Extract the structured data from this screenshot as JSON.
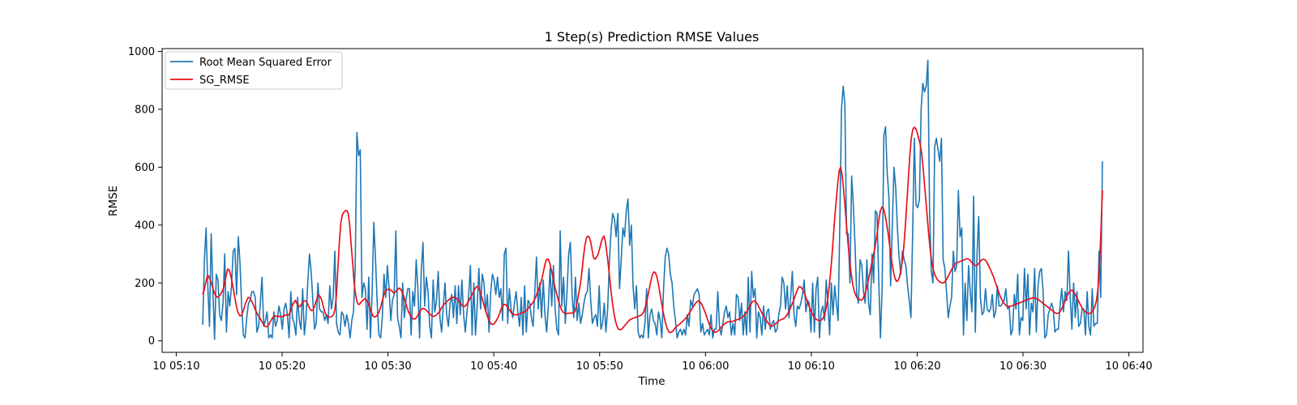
{
  "chart_data": {
    "type": "line",
    "title": "1 Step(s) Prediction RMSE Values",
    "xlabel": "Time",
    "ylabel": "RMSE",
    "xlim": [
      "10 05:08:40",
      "10 06:41:20"
    ],
    "ylim": [
      -40,
      1010
    ],
    "x_ticks": [
      "10 05:10",
      "10 05:20",
      "10 05:30",
      "10 05:40",
      "10 05:50",
      "10 06:00",
      "10 06:10",
      "10 06:20",
      "10 06:30",
      "10 06:40"
    ],
    "y_ticks": [
      0,
      200,
      400,
      600,
      800,
      1000
    ],
    "grid": false,
    "legend_position": "top-left",
    "x_start": "10 05:12:30",
    "x_end": "10 06:37:30",
    "series": [
      {
        "name": "Root Mean Squared Error",
        "color": "#1f77b4",
        "values": [
          55,
          280,
          390,
          190,
          50,
          370,
          180,
          5,
          230,
          210,
          90,
          70,
          130,
          300,
          30,
          170,
          120,
          190,
          310,
          320,
          160,
          360,
          270,
          120,
          20,
          10,
          80,
          130,
          140,
          170,
          170,
          150,
          30,
          50,
          130,
          220,
          50,
          70,
          100,
          10,
          20,
          10,
          100,
          50,
          70,
          120,
          90,
          40,
          110,
          130,
          90,
          10,
          170,
          80,
          60,
          20,
          150,
          70,
          40,
          180,
          20,
          80,
          200,
          300,
          240,
          140,
          40,
          60,
          200,
          110,
          100,
          100,
          70,
          90,
          60,
          190,
          110,
          150,
          310,
          60,
          30,
          20,
          100,
          90,
          50,
          90,
          60,
          10,
          70,
          100,
          250,
          720,
          640,
          660,
          150,
          200,
          180,
          40,
          220,
          10,
          170,
          410,
          280,
          130,
          20,
          10,
          80,
          230,
          150,
          260,
          180,
          70,
          140,
          160,
          380,
          80,
          50,
          10,
          200,
          80,
          140,
          180,
          180,
          20,
          170,
          120,
          280,
          180,
          10,
          240,
          340,
          120,
          220,
          170,
          50,
          10,
          210,
          100,
          140,
          240,
          80,
          30,
          120,
          200,
          90,
          50,
          130,
          160,
          80,
          190,
          60,
          190,
          90,
          210,
          90,
          30,
          100,
          160,
          260,
          20,
          200,
          20,
          120,
          250,
          110,
          230,
          200,
          100,
          160,
          30,
          170,
          230,
          210,
          160,
          220,
          150,
          180,
          70,
          300,
          320,
          60,
          180,
          110,
          80,
          130,
          170,
          100,
          50,
          150,
          20,
          190,
          30,
          140,
          130,
          80,
          50,
          170,
          290,
          110,
          200,
          80,
          210,
          90,
          30,
          120,
          250,
          120,
          260,
          110,
          40,
          20,
          380,
          120,
          220,
          60,
          170,
          300,
          340,
          160,
          80,
          220,
          70,
          130,
          60,
          90,
          130,
          160,
          170,
          250,
          140,
          60,
          80,
          90,
          50,
          190,
          40,
          60,
          130,
          30,
          110,
          270,
          380,
          440,
          420,
          360,
          440,
          180,
          280,
          390,
          360,
          450,
          490,
          330,
          400,
          190,
          110,
          190,
          30,
          10,
          20,
          10,
          60,
          180,
          10,
          90,
          110,
          70,
          60,
          20,
          100,
          70,
          10,
          180,
          290,
          320,
          300,
          230,
          200,
          120,
          70,
          10,
          30,
          40,
          20,
          40,
          20,
          90,
          50,
          140,
          120,
          160,
          170,
          180,
          160,
          30,
          60,
          20,
          30,
          40,
          20,
          90,
          10,
          40,
          40,
          170,
          50,
          20,
          60,
          100,
          120,
          80,
          100,
          20,
          60,
          20,
          160,
          150,
          70,
          130,
          20,
          100,
          20,
          220,
          30,
          240,
          150,
          180,
          10,
          100,
          80,
          20,
          120,
          40,
          100,
          110,
          40,
          60,
          70,
          30,
          40,
          90,
          120,
          220,
          200,
          110,
          190,
          80,
          150,
          240,
          90,
          50,
          120,
          110,
          130,
          160,
          210,
          100,
          140,
          130,
          30,
          200,
          30,
          180,
          220,
          10,
          100,
          120,
          70,
          210,
          130,
          20,
          200,
          90,
          190,
          130,
          70,
          400,
          800,
          880,
          820,
          370,
          370,
          200,
          570,
          470,
          330,
          160,
          130,
          280,
          260,
          170,
          130,
          280,
          130,
          90,
          300,
          200,
          450,
          440,
          210,
          10,
          180,
          710,
          740,
          580,
          500,
          190,
          400,
          600,
          530,
          390,
          290,
          230,
          310,
          280,
          260,
          190,
          140,
          80,
          370,
          700,
          470,
          460,
          490,
          800,
          890,
          860,
          880,
          970,
          450,
          240,
          200,
          670,
          700,
          660,
          620,
          700,
          280,
          250,
          170,
          80,
          120,
          150,
          310,
          240,
          260,
          520,
          360,
          390,
          20,
          200,
          70,
          260,
          170,
          100,
          500,
          30,
          300,
          430,
          150,
          90,
          100,
          180,
          110,
          100,
          110,
          160,
          80,
          100,
          190,
          120,
          120,
          130,
          140,
          180,
          110,
          120,
          20,
          40,
          160,
          110,
          230,
          20,
          80,
          70,
          250,
          110,
          230,
          20,
          130,
          100,
          250,
          30,
          190,
          240,
          250,
          170,
          10,
          20,
          90,
          110,
          130,
          110,
          30,
          40,
          40,
          120,
          180,
          100,
          170,
          140,
          310,
          150,
          40,
          200,
          80,
          170,
          50,
          60,
          110,
          110,
          20,
          170,
          50,
          20,
          180,
          50,
          60,
          60,
          310,
          150,
          620
        ]
      },
      {
        "name": "SG_RMSE",
        "color": "#e8111a",
        "values": [
          160,
          175,
          200,
          222,
          224,
          212,
          198,
          180,
          165,
          155,
          150,
          154,
          160,
          168,
          180,
          200,
          228,
          248,
          245,
          228,
          202,
          175,
          145,
          118,
          98,
          88,
          86,
          95,
          110,
          128,
          140,
          150,
          148,
          140,
          130,
          118,
          105,
          95,
          85,
          78,
          68,
          60,
          52,
          48,
          50,
          56,
          66,
          75,
          82,
          86,
          85,
          85,
          84,
          83,
          84,
          85,
          88,
          90,
          88,
          92,
          105,
          122,
          132,
          140,
          130,
          120,
          118,
          125,
          134,
          138,
          138,
          132,
          120,
          110,
          104,
          106,
          118,
          135,
          150,
          158,
          152,
          140,
          120,
          100,
          90,
          85,
          82,
          82,
          85,
          90,
          110,
          160,
          255,
          345,
          408,
          436,
          444,
          450,
          450,
          440,
          400,
          330,
          270,
          200,
          160,
          135,
          125,
          128,
          135,
          140,
          145,
          143,
          135,
          125,
          110,
          95,
          85,
          82,
          85,
          90,
          100,
          115,
          135,
          155,
          170,
          175,
          178,
          178,
          175,
          170,
          165,
          168,
          175,
          180,
          182,
          175,
          165,
          150,
          132,
          115,
          100,
          90,
          82,
          76,
          75,
          78,
          85,
          95,
          104,
          110,
          112,
          110,
          106,
          100,
          95,
          90,
          86,
          84,
          86,
          90,
          95,
          100,
          110,
          118,
          125,
          130,
          135,
          140,
          145,
          148,
          150,
          150,
          148,
          145,
          138,
          132,
          125,
          120,
          118,
          122,
          130,
          138,
          148,
          158,
          168,
          178,
          186,
          188,
          180,
          165,
          148,
          130,
          112,
          95,
          80,
          68,
          60,
          56,
          58,
          64,
          72,
          82,
          95,
          110,
          120,
          126,
          125,
          120,
          112,
          104,
          96,
          92,
          90,
          90,
          90,
          92,
          94,
          96,
          98,
          100,
          104,
          110,
          116,
          122,
          128,
          135,
          145,
          158,
          172,
          185,
          200,
          220,
          245,
          268,
          282,
          282,
          270,
          248,
          225,
          200,
          178,
          158,
          140,
          122,
          108,
          100,
          96,
          94,
          94,
          95,
          96,
          96,
          95,
          100,
          115,
          140,
          170,
          200,
          240,
          290,
          330,
          355,
          362,
          358,
          340,
          310,
          285,
          282,
          290,
          300,
          318,
          340,
          355,
          362,
          340,
          300,
          258,
          210,
          160,
          120,
          88,
          64,
          48,
          40,
          38,
          40,
          46,
          52,
          58,
          64,
          70,
          74,
          76,
          78,
          80,
          82,
          84,
          86,
          88,
          92,
          100,
          115,
          135,
          160,
          185,
          210,
          230,
          238,
          235,
          220,
          195,
          165,
          135,
          105,
          80,
          58,
          42,
          32,
          28,
          30,
          35,
          42,
          48,
          52,
          56,
          60,
          65,
          70,
          75,
          80,
          88,
          96,
          104,
          112,
          120,
          128,
          134,
          138,
          136,
          130,
          120,
          108,
          95,
          80,
          65,
          52,
          42,
          34,
          30,
          30,
          32,
          36,
          42,
          48,
          54,
          58,
          62,
          65,
          66,
          66,
          66,
          68,
          70,
          72,
          74,
          76,
          78,
          82,
          86,
          92,
          100,
          110,
          120,
          128,
          135,
          138,
          136,
          130,
          120,
          110,
          100,
          90,
          82,
          74,
          66,
          58,
          52,
          50,
          52,
          56,
          60,
          65,
          70,
          72,
          74,
          76,
          80,
          86,
          94,
          104,
          116,
          128,
          140,
          155,
          170,
          182,
          188,
          185,
          178,
          168,
          155,
          140,
          125,
          112,
          100,
          90,
          82,
          76,
          72,
          70,
          70,
          72,
          78,
          90,
          110,
          140,
          180,
          230,
          290,
          360,
          430,
          490,
          545,
          590,
          600,
          570,
          520,
          460,
          395,
          335,
          280,
          235,
          200,
          175,
          160,
          150,
          145,
          142,
          140,
          145,
          155,
          170,
          190,
          215,
          240,
          265,
          290,
          315,
          345,
          380,
          420,
          450,
          462,
          458,
          440,
          412,
          380,
          340,
          300,
          265,
          235,
          215,
          205,
          208,
          220,
          245,
          280,
          330,
          400,
          480,
          560,
          640,
          700,
          730,
          738,
          734,
          720,
          700,
          680,
          650,
          600,
          540,
          480,
          420,
          360,
          310,
          270,
          245,
          228,
          218,
          210,
          205,
          202,
          200,
          200,
          205,
          212,
          222,
          232,
          242,
          252,
          260,
          266,
          270,
          272,
          274,
          276,
          278,
          280,
          282,
          284,
          282,
          278,
          272,
          266,
          262,
          260,
          262,
          268,
          275,
          280,
          282,
          280,
          275,
          265,
          255,
          245,
          232,
          220,
          205,
          190,
          175,
          160,
          148,
          138,
          130,
          124,
          120,
          118,
          118,
          120,
          122,
          124,
          126,
          128,
          130,
          132,
          134,
          136,
          138,
          140,
          142,
          144,
          146,
          148,
          148,
          148,
          146,
          144,
          140,
          136,
          132,
          128,
          124,
          120,
          116,
          112,
          108,
          104,
          100,
          96,
          94,
          96,
          100,
          108,
          118,
          130,
          142,
          155,
          165,
          172,
          175,
          172,
          165,
          155,
          145,
          135,
          125,
          115,
          108,
          102,
          98,
          95,
          94,
          96,
          100,
          108,
          120,
          140,
          180,
          260,
          380,
          520
        ]
      }
    ]
  }
}
